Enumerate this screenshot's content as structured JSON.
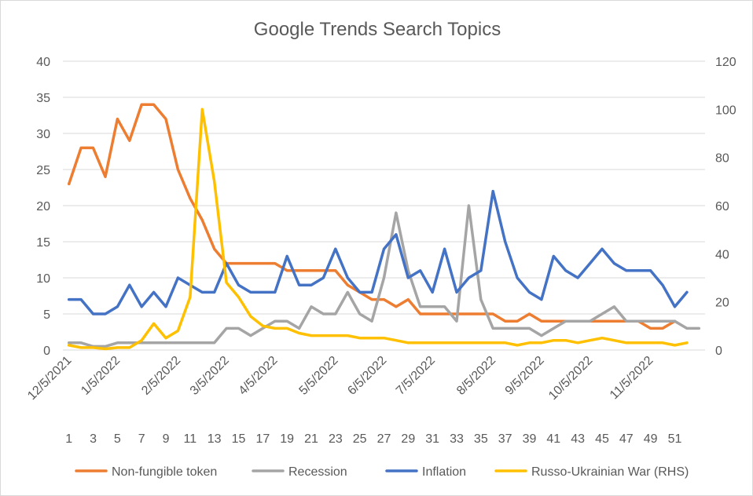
{
  "chart_data": {
    "type": "line",
    "title": "Google Trends Search Topics",
    "x": [
      1,
      2,
      3,
      4,
      5,
      6,
      7,
      8,
      9,
      10,
      11,
      12,
      13,
      14,
      15,
      16,
      17,
      18,
      19,
      20,
      21,
      22,
      23,
      24,
      25,
      26,
      27,
      28,
      29,
      30,
      31,
      32,
      33,
      34,
      35,
      36,
      37,
      38,
      39,
      40,
      41,
      42,
      43,
      44,
      45,
      46,
      47,
      48,
      49,
      50,
      51,
      52,
      53
    ],
    "x_tick_labels": [
      "1",
      "3",
      "5",
      "7",
      "9",
      "11",
      "13",
      "15",
      "17",
      "19",
      "21",
      "23",
      "25",
      "27",
      "29",
      "31",
      "33",
      "35",
      "37",
      "39",
      "41",
      "43",
      "45",
      "47",
      "49",
      "51"
    ],
    "date_labels": [
      "12/5/2021",
      "1/5/2022",
      "2/5/2022",
      "3/5/2022",
      "4/5/2022",
      "5/5/2022",
      "6/5/2022",
      "7/5/2022",
      "8/5/2022",
      "9/5/2022",
      "10/5/2022",
      "11/5/2022"
    ],
    "y_left": {
      "ylim": [
        0,
        40
      ],
      "ticks": [
        "0",
        "5",
        "10",
        "15",
        "20",
        "25",
        "30",
        "35",
        "40"
      ]
    },
    "y_right": {
      "ylim": [
        0,
        120
      ],
      "ticks": [
        "0",
        "20",
        "40",
        "60",
        "80",
        "100",
        "120"
      ]
    },
    "grid": true,
    "legend_position": "bottom",
    "series": [
      {
        "name": "Non-fungible token",
        "axis": "left",
        "color": "#ed7d31",
        "values": [
          23,
          28,
          28,
          24,
          32,
          29,
          34,
          34,
          32,
          25,
          21,
          18,
          14,
          12,
          12,
          12,
          12,
          12,
          11,
          11,
          11,
          11,
          11,
          9,
          8,
          7,
          7,
          6,
          7,
          5,
          5,
          5,
          5,
          5,
          5,
          5,
          4,
          4,
          5,
          4,
          4,
          4,
          4,
          4,
          4,
          4,
          4,
          4,
          3,
          3,
          4,
          null,
          null
        ]
      },
      {
        "name": "Recession",
        "axis": "left",
        "color": "#a5a5a5",
        "values": [
          1,
          1,
          0.5,
          0.5,
          1,
          1,
          1,
          1,
          1,
          1,
          1,
          1,
          1,
          3,
          3,
          2,
          3,
          4,
          4,
          3,
          6,
          5,
          5,
          8,
          5,
          4,
          10,
          19,
          11,
          6,
          6,
          6,
          4,
          20,
          7,
          3,
          3,
          3,
          3,
          2,
          3,
          4,
          4,
          4,
          5,
          6,
          4,
          4,
          4,
          4,
          4,
          3,
          3
        ]
      },
      {
        "name": "Inflation",
        "axis": "left",
        "color": "#4472c4",
        "values": [
          7,
          7,
          5,
          5,
          6,
          9,
          6,
          8,
          6,
          10,
          9,
          8,
          8,
          12,
          9,
          8,
          8,
          8,
          13,
          9,
          9,
          10,
          14,
          10,
          8,
          8,
          14,
          16,
          10,
          11,
          8,
          14,
          8,
          10,
          11,
          22,
          15,
          10,
          8,
          7,
          13,
          11,
          10,
          12,
          14,
          12,
          11,
          11,
          11,
          9,
          6,
          8,
          null
        ]
      },
      {
        "name": "Russo-Ukrainian War (RHS)",
        "axis": "right",
        "color": "#ffc000",
        "values": [
          2,
          1,
          1,
          0.5,
          1,
          1,
          4,
          11,
          5,
          8,
          22,
          100,
          70,
          28,
          22,
          14,
          10,
          9,
          9,
          7,
          6,
          6,
          6,
          6,
          5,
          5,
          5,
          4,
          3,
          3,
          3,
          3,
          3,
          3,
          3,
          3,
          3,
          2,
          3,
          3,
          4,
          4,
          3,
          4,
          5,
          4,
          3,
          3,
          3,
          3,
          2,
          3,
          null
        ]
      }
    ]
  }
}
